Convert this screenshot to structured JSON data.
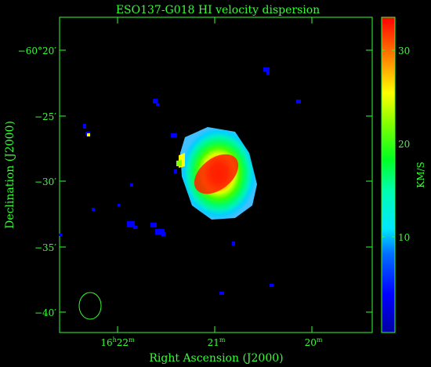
{
  "chart_data": {
    "type": "heatmap",
    "title": "ESO137-G018  HI velocity dispersion",
    "xlabel": "Right Ascension (J2000)",
    "ylabel": "Declination (J2000)",
    "colorbar": {
      "label": "KM/S",
      "min": 0,
      "max": 33,
      "ticks": [
        10,
        20,
        30
      ],
      "tick_labels": [
        "10",
        "20",
        "30"
      ]
    },
    "x_ticks": [
      {
        "h": "16",
        "m": "22",
        "label_h": "16h22m"
      },
      {
        "h": "",
        "m": "21",
        "label_h": "21m"
      },
      {
        "h": "",
        "m": "20",
        "label_h": "20m"
      }
    ],
    "y_ticks": [
      "−60°20′",
      "−25′",
      "−30′",
      "−35′",
      "−40′"
    ],
    "colors": {
      "frame": "#33ff33",
      "background": "#000000",
      "low": "#0000cc",
      "high": "#ff0000"
    },
    "features": {
      "galaxy": "central HI disk, peak dispersion ~33 km/s",
      "beam": "ellipse"
    }
  }
}
